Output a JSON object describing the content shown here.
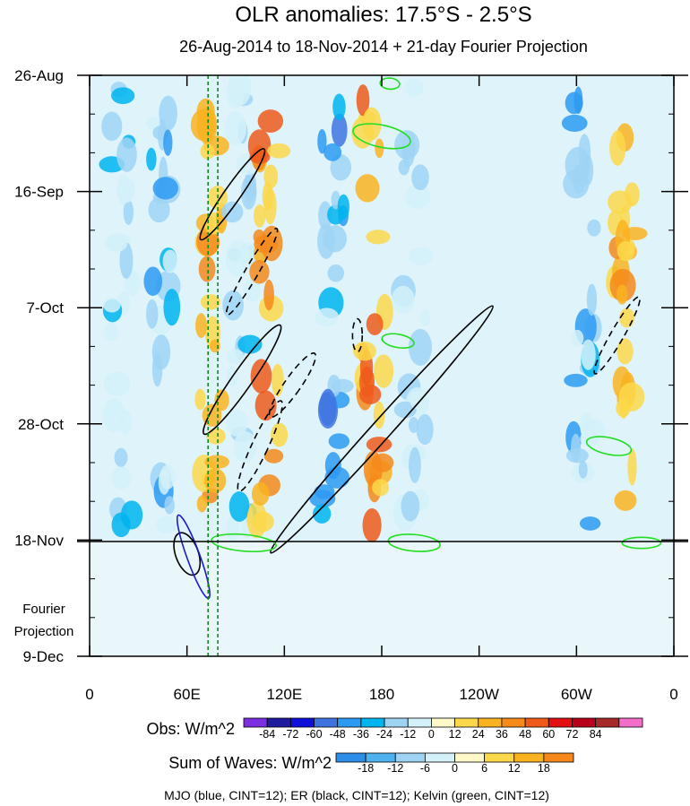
{
  "chart_data": {
    "type": "heatmap",
    "title": "OLR anomalies: 17.5°S - 2.5°S",
    "subtitle": "26-Aug-2014 to 18-Nov-2014 + 21-day Fourier Projection",
    "x_ticks": [
      "0",
      "60E",
      "120E",
      "180",
      "120W",
      "60W",
      "0"
    ],
    "x_tick_values": [
      0,
      60,
      120,
      180,
      240,
      300,
      360
    ],
    "y_ticks": [
      "26-Aug",
      "16-Sep",
      "7-Oct",
      "28-Oct",
      "18-Nov",
      "9-Dec"
    ],
    "y_tick_days": [
      0,
      21,
      42,
      63,
      84,
      105
    ],
    "xlim": [
      0,
      360
    ],
    "ylim_days": [
      0,
      105
    ],
    "observation_end_label": "18-Nov",
    "projection_label": [
      "Fourier",
      "Projection"
    ],
    "reference_longitudes": [
      73,
      79
    ],
    "obs_colorbar": {
      "label": "Obs: W/m^2",
      "ticks": [
        "-84",
        "-72",
        "-60",
        "-48",
        "-36",
        "-24",
        "-12",
        "0",
        "12",
        "24",
        "36",
        "48",
        "60",
        "72",
        "84"
      ],
      "colors": [
        "#7b2fe0",
        "#1f1a9e",
        "#1010d8",
        "#3f74e0",
        "#2d9af2",
        "#00b4ee",
        "#9fd3f4",
        "#d4f1f9",
        "#fff8c8",
        "#fbd84a",
        "#f9b321",
        "#f58a1b",
        "#ef5a1b",
        "#e30f12",
        "#b8001c",
        "#a72a2a",
        "#f26ec8"
      ]
    },
    "waves_colorbar": {
      "label": "Sum of Waves: W/m^2",
      "ticks": [
        "-18",
        "-12",
        "-6",
        "0",
        "6",
        "12",
        "18"
      ],
      "colors": [
        "#2d8ee8",
        "#4fb2f0",
        "#9fd3f4",
        "#d4f1f9",
        "#fff8c8",
        "#fbd84a",
        "#f9b321",
        "#f5871b"
      ]
    },
    "footer": "MJO (blue, CINT=12); ER (black, CINT=12); Kelvin (green, CINT=12)",
    "anomaly_bands": [
      {
        "lon": 20,
        "sign": -1,
        "strength": 0.6
      },
      {
        "lon": 45,
        "sign": -1,
        "strength": 0.8
      },
      {
        "lon": 75,
        "sign": 1,
        "strength": 0.7
      },
      {
        "lon": 95,
        "sign": -1,
        "strength": 0.6
      },
      {
        "lon": 110,
        "sign": 1,
        "strength": 0.9
      },
      {
        "lon": 150,
        "sign": -1,
        "strength": 1.0
      },
      {
        "lon": 175,
        "sign": 1,
        "strength": 0.8
      },
      {
        "lon": 200,
        "sign": -1,
        "strength": 0.5
      },
      {
        "lon": 305,
        "sign": -1,
        "strength": 0.9
      },
      {
        "lon": 330,
        "sign": 1,
        "strength": 0.6
      }
    ],
    "er_contours": [
      {
        "lon": 88,
        "day": 21.5,
        "rx": 5,
        "ry": 10,
        "rot": 35,
        "dashed": false
      },
      {
        "lon": 100,
        "day": 35.5,
        "rx": 4,
        "ry": 9,
        "rot": 30,
        "dashed": true
      },
      {
        "lon": 94,
        "day": 55,
        "rx": 6,
        "ry": 12,
        "rot": 35,
        "dashed": false
      },
      {
        "lon": 125,
        "day": 56,
        "rx": 5,
        "ry": 7,
        "rot": 35,
        "dashed": true
      },
      {
        "lon": 105,
        "day": 67,
        "rx": 5,
        "ry": 9,
        "rot": 25,
        "dashed": true
      },
      {
        "lon": 180,
        "day": 64,
        "rx": 6,
        "ry": 30,
        "rot": 42,
        "dashed": false
      },
      {
        "lon": 325,
        "day": 47,
        "rx": 4,
        "ry": 8,
        "rot": 30,
        "dashed": true
      },
      {
        "lon": 165,
        "day": 47,
        "rx": 3,
        "ry": 3,
        "rot": 0,
        "dashed": true
      },
      {
        "lon": 60,
        "day": 86.5,
        "rx": 7,
        "ry": 4,
        "rot": -20,
        "dashed": false
      }
    ],
    "mjo_contours": [
      {
        "lon": 64,
        "day": 87,
        "rx": 4,
        "ry": 8,
        "rot": -20
      }
    ],
    "kelvin_contours": [
      {
        "lon": 180,
        "day": 11,
        "rx": 18,
        "ry": 2,
        "rot": 12
      },
      {
        "lon": 185,
        "day": 1.5,
        "rx": 6,
        "ry": 1,
        "rot": 5
      },
      {
        "lon": 190,
        "day": 48,
        "rx": 10,
        "ry": 1.2,
        "rot": 10
      },
      {
        "lon": 320,
        "day": 67,
        "rx": 14,
        "ry": 1.5,
        "rot": 12
      },
      {
        "lon": 200,
        "day": 84.5,
        "rx": 16,
        "ry": 1.5,
        "rot": 5
      },
      {
        "lon": 95,
        "day": 84.5,
        "rx": 20,
        "ry": 1.5,
        "rot": 5
      },
      {
        "lon": 340,
        "day": 84.5,
        "rx": 12,
        "ry": 1,
        "rot": 0
      }
    ]
  }
}
